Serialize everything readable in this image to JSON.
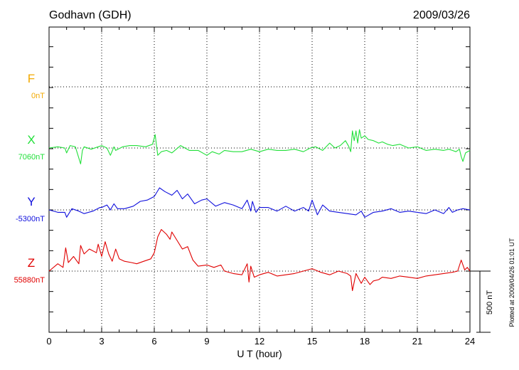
{
  "header": {
    "station": "Godhavn (GDH)",
    "date": "2009/03/26"
  },
  "footer": {
    "plotted_note": "Plotted at 2009/04/26 01:01 UT"
  },
  "chart_data": {
    "type": "line",
    "xlabel": "U T (hour)",
    "xlim": [
      0,
      24
    ],
    "xticks": [
      "0",
      "3",
      "6",
      "9",
      "12",
      "15",
      "18",
      "21",
      "24"
    ],
    "scale_bar_label": "500 nT",
    "scale_bar_nT": 500,
    "grid": "dotted horizontal baselines plus vertical lines every 3 h",
    "series": [
      {
        "name": "F",
        "baseline_label": "0nT",
        "color": "#f2a900",
        "x": [],
        "values": []
      },
      {
        "name": "X",
        "baseline_label": "7060nT",
        "color": "#22e03a",
        "x": [
          0,
          0.5,
          0.9,
          1.0,
          1.2,
          1.5,
          1.8,
          1.9,
          2.0,
          2.4,
          2.8,
          3.0,
          3.3,
          3.5,
          3.7,
          3.8,
          4.2,
          4.6,
          5.0,
          5.5,
          5.9,
          6.05,
          6.2,
          6.4,
          6.7,
          7.0,
          7.5,
          8.0,
          8.5,
          9.0,
          9.3,
          9.7,
          10.0,
          10.5,
          11.0,
          11.5,
          12.0,
          12.5,
          13.0,
          13.5,
          14.0,
          14.5,
          14.9,
          15.2,
          15.6,
          16.0,
          16.3,
          16.6,
          16.9,
          17.1,
          17.2,
          17.3,
          17.4,
          17.5,
          17.6,
          17.7,
          17.8,
          18.0,
          18.2,
          18.5,
          18.8,
          19.0,
          19.3,
          19.6,
          20.0,
          20.5,
          21.0,
          21.5,
          22.0,
          22.5,
          22.8,
          23.0,
          23.2,
          23.4,
          23.5,
          23.6,
          23.75,
          24.0
        ],
        "values": [
          0,
          10,
          0,
          -40,
          20,
          10,
          -130,
          -20,
          10,
          -10,
          10,
          20,
          0,
          -60,
          10,
          -20,
          10,
          20,
          20,
          10,
          30,
          110,
          -60,
          -30,
          -20,
          -40,
          20,
          -20,
          -20,
          -60,
          -30,
          -50,
          -20,
          -30,
          -30,
          -10,
          -30,
          -10,
          -20,
          -20,
          -10,
          -30,
          0,
          10,
          -20,
          40,
          0,
          20,
          60,
          10,
          -30,
          140,
          60,
          140,
          40,
          150,
          80,
          100,
          70,
          60,
          40,
          50,
          30,
          20,
          30,
          0,
          10,
          -20,
          -10,
          -20,
          -10,
          -20,
          -30,
          -10,
          -70,
          -110,
          -40,
          -20
        ]
      },
      {
        "name": "Y",
        "baseline_label": "-5300nT",
        "color": "#1010dd",
        "x": [
          0,
          0.5,
          0.9,
          1.0,
          1.3,
          1.7,
          2.0,
          2.5,
          2.9,
          3.0,
          3.3,
          3.5,
          3.7,
          3.9,
          4.3,
          4.8,
          5.2,
          5.6,
          6.0,
          6.3,
          6.6,
          7.0,
          7.3,
          7.6,
          7.9,
          8.3,
          8.7,
          9.0,
          9.5,
          10.0,
          10.5,
          11.0,
          11.3,
          11.5,
          11.6,
          11.8,
          12.0,
          12.5,
          13.0,
          13.5,
          14.0,
          14.5,
          14.8,
          15.0,
          15.3,
          15.6,
          16.0,
          16.5,
          17.0,
          17.5,
          17.8,
          18.0,
          18.5,
          19.0,
          19.5,
          20.0,
          20.5,
          21.0,
          21.5,
          22.0,
          22.5,
          22.8,
          23.0,
          23.3,
          23.6,
          24.0
        ],
        "values": [
          0,
          -20,
          -20,
          -60,
          10,
          -10,
          -30,
          -10,
          20,
          20,
          40,
          0,
          50,
          10,
          10,
          30,
          70,
          80,
          110,
          180,
          150,
          120,
          160,
          90,
          130,
          50,
          80,
          90,
          30,
          60,
          40,
          10,
          80,
          -10,
          70,
          -20,
          20,
          20,
          -10,
          30,
          -10,
          20,
          -10,
          80,
          -40,
          40,
          -10,
          -20,
          -30,
          -40,
          -10,
          -60,
          -20,
          -10,
          10,
          -20,
          -10,
          -20,
          -30,
          0,
          -30,
          20,
          -20,
          0,
          10,
          0
        ]
      },
      {
        "name": "Z",
        "baseline_label": "55880nT",
        "color": "#e00000",
        "x": [
          0,
          0.5,
          0.8,
          0.95,
          1.1,
          1.4,
          1.7,
          1.8,
          2.0,
          2.3,
          2.7,
          2.8,
          3.0,
          3.2,
          3.4,
          3.6,
          3.8,
          4.0,
          4.3,
          4.7,
          5.0,
          5.4,
          5.8,
          6.0,
          6.2,
          6.4,
          6.7,
          6.9,
          7.0,
          7.3,
          7.6,
          7.9,
          8.2,
          8.5,
          9.0,
          9.4,
          9.8,
          10.0,
          10.5,
          11.0,
          11.3,
          11.4,
          11.5,
          11.7,
          12.0,
          12.5,
          13.0,
          13.5,
          14.0,
          14.5,
          15.0,
          15.5,
          16.0,
          16.5,
          17.0,
          17.2,
          17.3,
          17.5,
          17.8,
          18.0,
          18.3,
          18.5,
          18.8,
          19.0,
          19.5,
          20.0,
          20.5,
          21.0,
          21.5,
          22.0,
          22.5,
          23.0,
          23.3,
          23.5,
          23.7,
          23.85,
          24.0
        ],
        "values": [
          0,
          60,
          30,
          190,
          70,
          120,
          60,
          210,
          140,
          180,
          150,
          220,
          120,
          240,
          140,
          80,
          180,
          100,
          80,
          70,
          60,
          80,
          100,
          150,
          280,
          340,
          300,
          260,
          320,
          250,
          180,
          200,
          90,
          40,
          50,
          30,
          50,
          0,
          -20,
          -30,
          60,
          -90,
          40,
          -50,
          -30,
          -10,
          -40,
          -30,
          -20,
          0,
          20,
          -10,
          -30,
          0,
          -20,
          -40,
          -160,
          -20,
          -100,
          -50,
          -110,
          -80,
          -70,
          -50,
          -60,
          -40,
          -50,
          -60,
          -40,
          -30,
          -20,
          -10,
          0,
          90,
          10,
          30,
          0
        ]
      }
    ]
  }
}
